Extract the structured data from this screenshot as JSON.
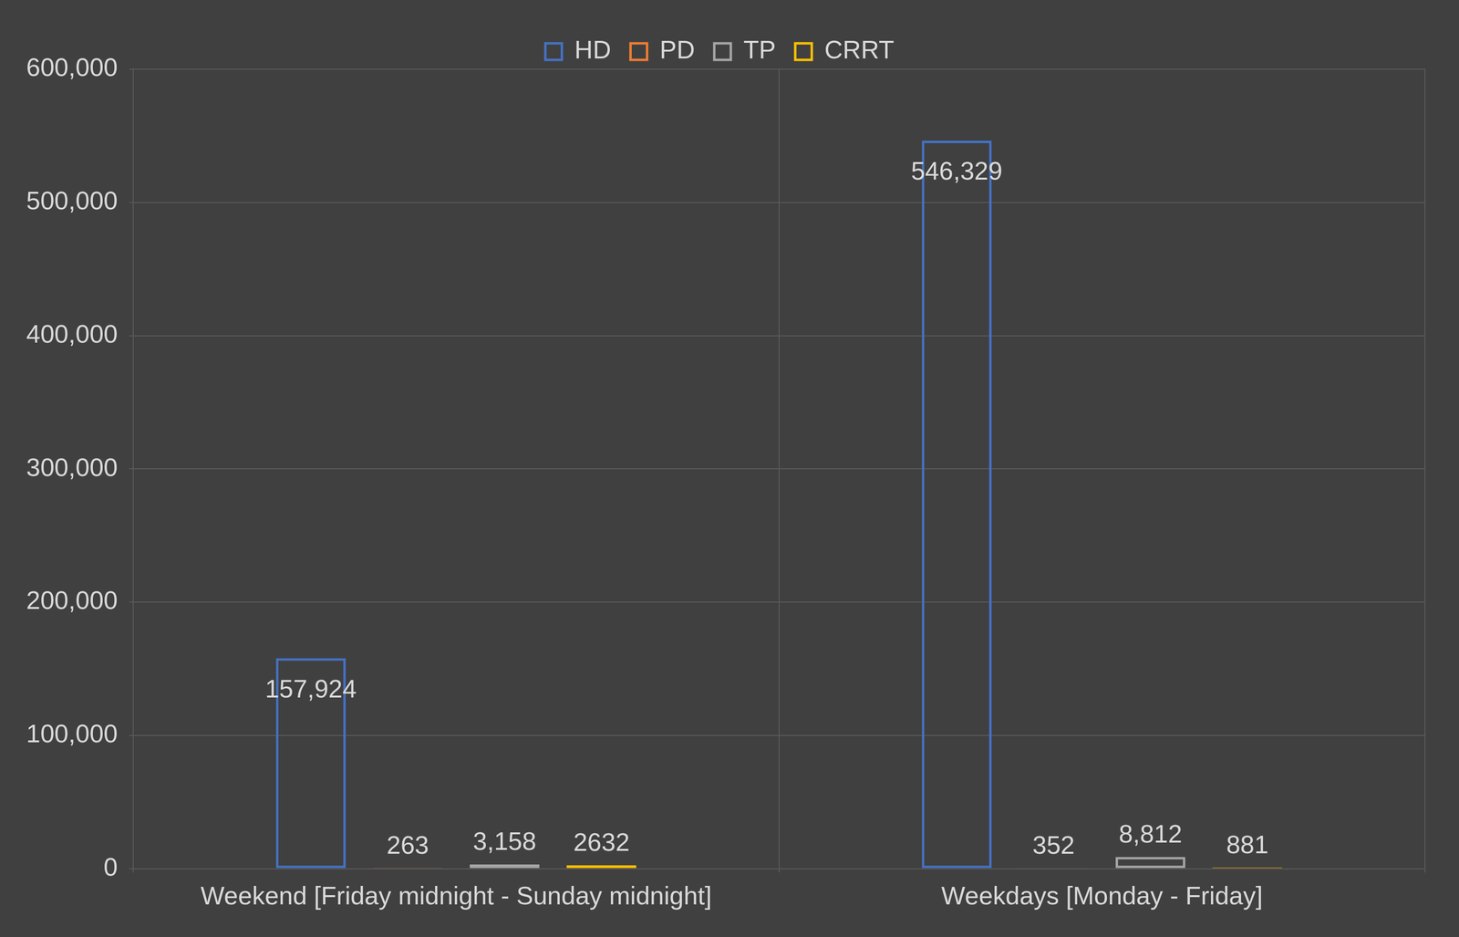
{
  "chart_data": {
    "type": "bar",
    "categories": [
      "Weekend [Friday midnight - Sunday midnight]",
      "Weekdays [Monday - Friday]"
    ],
    "series": [
      {
        "name": "HD",
        "color": "#4472c4",
        "values": [
          157924,
          546329
        ],
        "value_labels": [
          "157,924",
          "546,329"
        ]
      },
      {
        "name": "PD",
        "color": "#ed7d31",
        "values": [
          263,
          352
        ],
        "value_labels": [
          "263",
          "352"
        ]
      },
      {
        "name": "TP",
        "color": "#a5a5a5",
        "values": [
          3158,
          8812
        ],
        "value_labels": [
          "3,158",
          "8,812"
        ]
      },
      {
        "name": "CRRT",
        "color": "#ffc000",
        "values": [
          2632,
          881
        ],
        "value_labels": [
          "2632",
          "881"
        ]
      }
    ],
    "ylim": [
      0,
      600000
    ],
    "yticks": [
      0,
      {
        "value": 100000,
        "label": "100,000"
      },
      {
        "value": 200000,
        "label": "200,000"
      },
      {
        "value": 300000,
        "label": "300,000"
      },
      {
        "value": 400000,
        "label": "400,000"
      },
      {
        "value": 500000,
        "label": "500,000"
      },
      {
        "value": 600000,
        "label": "600,000"
      }
    ],
    "grid": true,
    "legend": "top",
    "data_labels": true
  }
}
